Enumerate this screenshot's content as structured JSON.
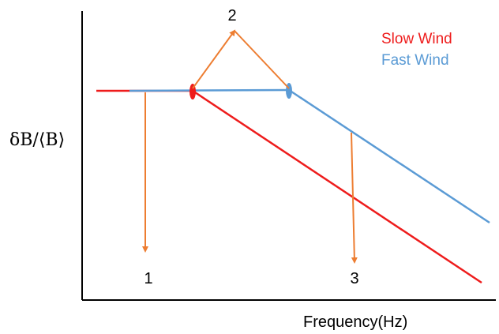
{
  "ylabel": "δB/⟨B⟩",
  "xlabel": "Frequency(Hz)",
  "legend": {
    "slow": {
      "label": "Slow Wind",
      "color": "#ee1c1c"
    },
    "fast": {
      "label": "Fast Wind",
      "color": "#5b9bd5"
    }
  },
  "arrow_color": "#ed7d31",
  "markers": [
    "1",
    "2",
    "3"
  ]
}
